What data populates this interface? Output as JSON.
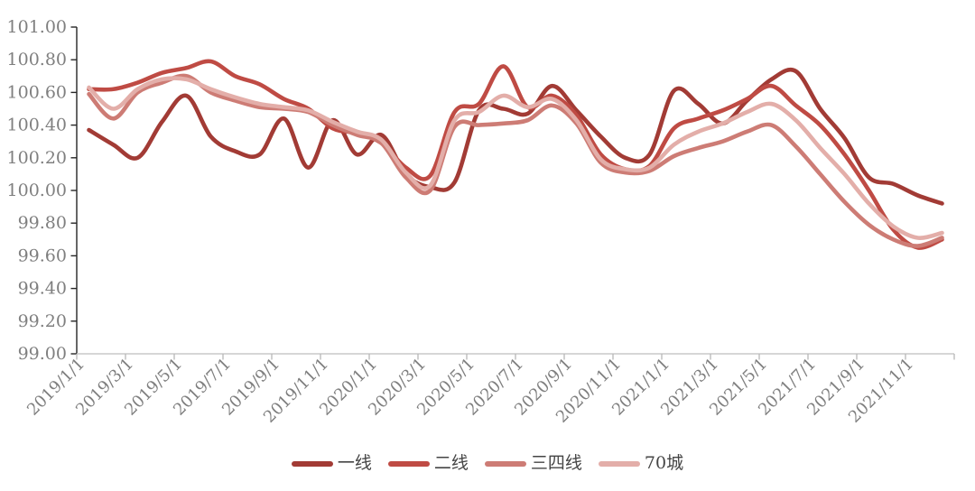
{
  "chart_data": {
    "type": "line",
    "title": "",
    "xlabel": "",
    "ylabel": "",
    "grid": "off",
    "legend_position": "bottom",
    "ylim": [
      99.0,
      101.0
    ],
    "y_step": 0.2,
    "y_tick_labels": [
      "101.00",
      "100.80",
      "100.60",
      "100.40",
      "100.20",
      "100.00",
      "99.80",
      "99.60",
      "99.40",
      "99.20",
      "99.00"
    ],
    "x_tick_labels": [
      "2019/1/1",
      "2019/3/1",
      "2019/5/1",
      "2019/7/1",
      "2019/9/1",
      "2019/11/1",
      "2020/1/1",
      "2020/3/1",
      "2020/5/1",
      "2020/7/1",
      "2020/9/1",
      "2020/11/1",
      "2021/1/1",
      "2021/3/1",
      "2021/5/1",
      "2021/7/1",
      "2021/9/1",
      "2021/11/1"
    ],
    "categories": [
      "2019/1/1",
      "2019/2/1",
      "2019/3/1",
      "2019/4/1",
      "2019/5/1",
      "2019/6/1",
      "2019/7/1",
      "2019/8/1",
      "2019/9/1",
      "2019/10/1",
      "2019/11/1",
      "2019/12/1",
      "2020/1/1",
      "2020/2/1",
      "2020/3/1",
      "2020/4/1",
      "2020/5/1",
      "2020/6/1",
      "2020/7/1",
      "2020/8/1",
      "2020/9/1",
      "2020/10/1",
      "2020/11/1",
      "2020/12/1",
      "2021/1/1",
      "2021/2/1",
      "2021/3/1",
      "2021/4/1",
      "2021/5/1",
      "2021/6/1",
      "2021/7/1",
      "2021/8/1",
      "2021/9/1",
      "2021/10/1",
      "2021/11/1",
      "2021/12/1"
    ],
    "series": [
      {
        "name": "一线",
        "color": "#A23B35",
        "values": [
          100.37,
          100.28,
          100.2,
          100.42,
          100.58,
          100.33,
          100.24,
          100.22,
          100.44,
          100.14,
          100.43,
          100.22,
          100.34,
          100.1,
          100.02,
          100.05,
          100.49,
          100.5,
          100.47,
          100.64,
          100.49,
          100.33,
          100.2,
          100.22,
          100.61,
          100.53,
          100.41,
          100.55,
          100.68,
          100.73,
          100.5,
          100.32,
          100.08,
          100.04,
          99.97,
          99.92
        ]
      },
      {
        "name": "二线",
        "color": "#BF4B44",
        "values": [
          100.62,
          100.62,
          100.66,
          100.72,
          100.75,
          100.79,
          100.7,
          100.65,
          100.56,
          100.5,
          100.38,
          100.35,
          100.29,
          100.14,
          100.09,
          100.48,
          100.53,
          100.76,
          100.51,
          100.58,
          100.46,
          100.22,
          100.13,
          100.15,
          100.38,
          100.44,
          100.49,
          100.56,
          100.64,
          100.52,
          100.4,
          100.22,
          100.0,
          99.76,
          99.65,
          99.7
        ]
      },
      {
        "name": "三四线",
        "color": "#CD7C75",
        "values": [
          100.59,
          100.44,
          100.6,
          100.66,
          100.7,
          100.6,
          100.55,
          100.51,
          100.5,
          100.48,
          100.4,
          100.34,
          100.29,
          100.08,
          100.0,
          100.39,
          100.4,
          100.41,
          100.43,
          100.52,
          100.41,
          100.17,
          100.11,
          100.12,
          100.21,
          100.26,
          100.3,
          100.36,
          100.4,
          100.27,
          100.1,
          99.93,
          99.79,
          99.7,
          99.66,
          99.71
        ]
      },
      {
        "name": "70城",
        "color": "#E3AEA9",
        "values": [
          100.63,
          100.5,
          100.62,
          100.68,
          100.68,
          100.62,
          100.57,
          100.53,
          100.51,
          100.49,
          100.42,
          100.36,
          100.31,
          100.11,
          100.03,
          100.43,
          100.48,
          100.58,
          100.51,
          100.56,
          100.43,
          100.19,
          100.13,
          100.14,
          100.28,
          100.36,
          100.41,
          100.48,
          100.53,
          100.43,
          100.26,
          100.1,
          99.92,
          99.78,
          99.71,
          99.74
        ]
      }
    ]
  },
  "colors": {
    "y_axis": "#262626",
    "x_axis": "#C9C9C9",
    "y_tick": "#262626",
    "x_tick": "#BBBBBB",
    "tick_label": "#7F7F7F",
    "legend_text": "#454545",
    "background": "#FFFFFF"
  }
}
